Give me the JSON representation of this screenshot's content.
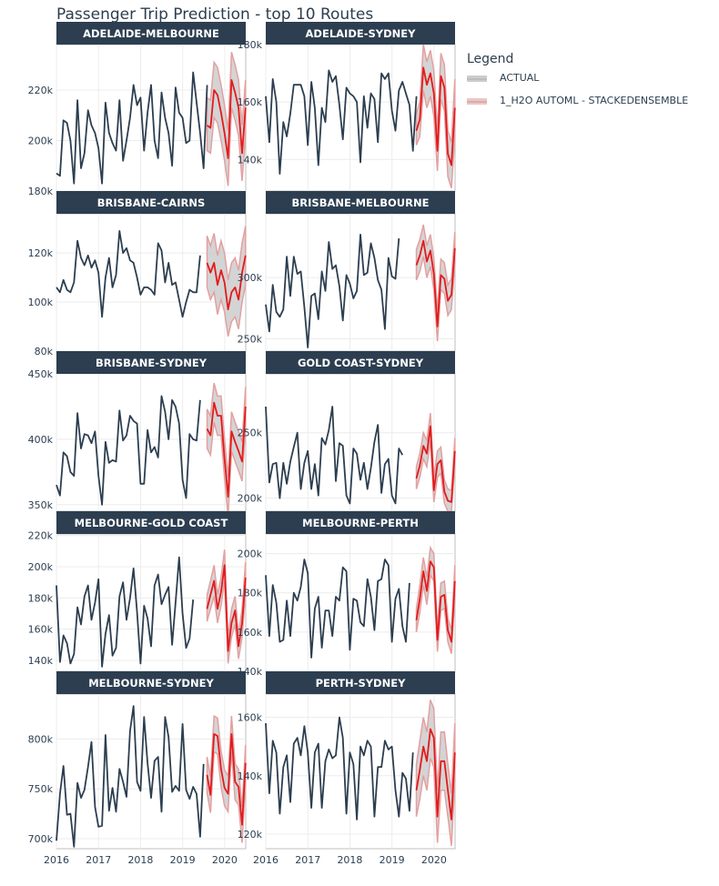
{
  "chart_title": "Passenger Trip Prediction - top 10 Routes",
  "legend": {
    "title": "Legend",
    "items": [
      {
        "label": "ACTUAL",
        "color": "#2c3e50"
      },
      {
        "label": "1_H2O AUTOML - STACKEDENSEMBLE",
        "color": "#e31a1c"
      }
    ]
  },
  "colors": {
    "actual": "#2c3e50",
    "forecast": "#e31a1c",
    "band": "#cccccc",
    "band_edge": "#e3a0a0",
    "strip": "#2c3e50"
  },
  "chart_data": {
    "type": "line",
    "title": "Passenger Trip Prediction - top 10 Routes",
    "x_axis": {
      "range": [
        2016,
        2020.5
      ],
      "ticks": [
        2016,
        2017,
        2018,
        2019,
        2020
      ],
      "labels": [
        "2016",
        "2017",
        "2018",
        "2019",
        "2020"
      ]
    },
    "series_names": [
      "ACTUAL",
      "1_H2O AUTOML - STACKEDENSEMBLE"
    ],
    "actual_start": 2016.0,
    "forecast_start": 2019.58,
    "step": 0.0833,
    "panels": [
      {
        "name": "ADELAIDE-MELBOURNE",
        "y_ticks": [
          180000,
          200000,
          220000
        ],
        "y_tick_labels": [
          "180k",
          "200k",
          "220k"
        ],
        "ylim": [
          180000,
          238000
        ],
        "actual": [
          187000,
          186000,
          208000,
          207000,
          200000,
          183000,
          216000,
          189000,
          195000,
          212000,
          206000,
          203000,
          197000,
          183000,
          215000,
          203000,
          199000,
          196000,
          216000,
          192000,
          200000,
          209000,
          222000,
          214000,
          217000,
          196000,
          211000,
          222000,
          200000,
          193000,
          219000,
          209000,
          203000,
          190000,
          221000,
          211000,
          209000,
          199000,
          200000,
          227000,
          215000,
          203000,
          189000,
          222000
        ],
        "forecast": [
          206000,
          205000,
          220000,
          218000,
          211000,
          203000,
          193000,
          224000,
          219000,
          213000,
          195000,
          213000
        ],
        "lower": [
          196000,
          195000,
          209000,
          207000,
          200000,
          192000,
          182000,
          213000,
          208000,
          202000,
          184000,
          202000
        ],
        "upper": [
          217000,
          216000,
          231000,
          229000,
          222000,
          214000,
          204000,
          235000,
          230000,
          224000,
          206000,
          224000
        ]
      },
      {
        "name": "ADELAIDE-SYDNEY",
        "y_ticks": [
          140000,
          160000,
          180000
        ],
        "y_tick_labels": [
          "140k",
          "160k",
          "180k"
        ],
        "ylim": [
          129000,
          180000
        ],
        "actual": [
          162000,
          146000,
          168000,
          160000,
          135000,
          153000,
          148000,
          156000,
          166000,
          166000,
          166000,
          162000,
          145000,
          167000,
          158000,
          138000,
          158000,
          153000,
          171000,
          167000,
          169000,
          159000,
          147000,
          165000,
          163000,
          162000,
          160000,
          139000,
          162000,
          151000,
          163000,
          161000,
          146000,
          170000,
          168000,
          170000,
          157000,
          150000,
          164000,
          167000,
          163000,
          159000,
          143000,
          162000
        ],
        "forecast": [
          150000,
          154000,
          172000,
          166000,
          170000,
          163000,
          143000,
          169000,
          165000,
          142000,
          138000,
          158000
        ],
        "lower": [
          145000,
          148000,
          164000,
          158000,
          162000,
          155000,
          136000,
          161000,
          157000,
          134000,
          130000,
          148000
        ],
        "upper": [
          156000,
          160000,
          180000,
          174000,
          178000,
          171000,
          150000,
          177000,
          173000,
          150000,
          146000,
          168000
        ]
      },
      {
        "name": "BRISBANE-CAIRNS",
        "y_ticks": [
          80000,
          100000,
          120000
        ],
        "y_tick_labels": [
          "80k",
          "100k",
          "120k"
        ],
        "ylim": [
          80000,
          136000
        ],
        "actual": [
          106000,
          104000,
          109000,
          105000,
          104000,
          108000,
          125000,
          118000,
          115000,
          119000,
          114000,
          117000,
          112000,
          94000,
          110000,
          118000,
          106000,
          111000,
          129000,
          120000,
          122000,
          117000,
          116000,
          110000,
          103000,
          106000,
          106000,
          105000,
          103000,
          124000,
          121000,
          108000,
          116000,
          107000,
          108000,
          101000,
          94000,
          100000,
          105000,
          104000,
          104000,
          119000
        ],
        "forecast": [
          116000,
          112000,
          116000,
          107000,
          113000,
          108000,
          97000,
          104000,
          106000,
          101000,
          112000,
          119000
        ],
        "lower": [
          106000,
          101000,
          104000,
          95000,
          101000,
          96000,
          86000,
          92000,
          94000,
          89000,
          100000,
          107000
        ],
        "upper": [
          127000,
          123000,
          128000,
          119000,
          125000,
          120000,
          109000,
          116000,
          118000,
          113000,
          124000,
          131000
        ]
      },
      {
        "name": "BRISBANE-MELBOURNE",
        "y_ticks": [
          250000,
          300000
        ],
        "y_tick_labels": [
          "250k",
          "300k"
        ],
        "ylim": [
          240000,
          352000
        ],
        "actual": [
          278000,
          256000,
          294000,
          272000,
          268000,
          274000,
          317000,
          285000,
          317000,
          303000,
          305000,
          276000,
          243000,
          285000,
          287000,
          266000,
          305000,
          289000,
          329000,
          307000,
          310000,
          293000,
          265000,
          302000,
          295000,
          283000,
          289000,
          335000,
          302000,
          304000,
          328000,
          316000,
          298000,
          290000,
          258000,
          316000,
          301000,
          299000,
          332000
        ],
        "forecast": [
          310000,
          318000,
          330000,
          313000,
          322000,
          303000,
          260000,
          302000,
          299000,
          281000,
          286000,
          324000
        ],
        "lower": [
          298000,
          305000,
          317000,
          300000,
          309000,
          290000,
          248000,
          290000,
          287000,
          269000,
          274000,
          311000
        ],
        "upper": [
          323000,
          331000,
          343000,
          326000,
          335000,
          316000,
          273000,
          315000,
          312000,
          294000,
          299000,
          337000
        ]
      },
      {
        "name": "BRISBANE-SYDNEY",
        "y_ticks": [
          350000,
          400000,
          450000
        ],
        "y_tick_labels": [
          "350k",
          "400k",
          "450k"
        ],
        "ylim": [
          345000,
          450000
        ],
        "actual": [
          365000,
          357000,
          390000,
          387000,
          375000,
          372000,
          420000,
          393000,
          404000,
          403000,
          397000,
          406000,
          372000,
          350000,
          398000,
          382000,
          384000,
          383000,
          422000,
          399000,
          403000,
          418000,
          414000,
          412000,
          366000,
          366000,
          407000,
          390000,
          394000,
          386000,
          433000,
          421000,
          400000,
          430000,
          425000,
          412000,
          369000,
          355000,
          404000,
          400000,
          399000,
          430000
        ],
        "forecast": [
          408000,
          403000,
          428000,
          418000,
          418000,
          385000,
          356000,
          406000,
          398000,
          391000,
          383000,
          425000
        ],
        "lower": [
          393000,
          388000,
          413000,
          403000,
          403000,
          370000,
          341000,
          391000,
          383000,
          376000,
          368000,
          410000
        ],
        "upper": [
          423000,
          418000,
          443000,
          433000,
          433000,
          400000,
          371000,
          421000,
          413000,
          406000,
          398000,
          440000
        ]
      },
      {
        "name": "GOLD COAST-SYDNEY",
        "y_ticks": [
          200000,
          250000
        ],
        "y_tick_labels": [
          "200k",
          "250k"
        ],
        "ylim": [
          190000,
          295000
        ],
        "actual": [
          270000,
          212000,
          226000,
          227000,
          200000,
          227000,
          211000,
          228000,
          239000,
          250000,
          207000,
          227000,
          236000,
          207000,
          226000,
          202000,
          246000,
          241000,
          252000,
          270000,
          213000,
          242000,
          240000,
          202000,
          196000,
          238000,
          234000,
          214000,
          227000,
          207000,
          223000,
          243000,
          256000,
          204000,
          226000,
          230000,
          202000,
          196000,
          238000,
          233000
        ],
        "forecast": [
          215000,
          225000,
          240000,
          234000,
          255000,
          206000,
          226000,
          229000,
          205000,
          198000,
          197000,
          236000
        ],
        "lower": [
          207000,
          216000,
          230000,
          224000,
          244000,
          197000,
          216000,
          219000,
          196000,
          190000,
          190000,
          226000
        ],
        "upper": [
          224000,
          234000,
          250000,
          244000,
          265000,
          216000,
          236000,
          239000,
          214000,
          207000,
          206000,
          246000
        ]
      },
      {
        "name": "MELBOURNE-GOLD COAST",
        "y_ticks": [
          140000,
          160000,
          180000,
          200000,
          220000
        ],
        "y_tick_labels": [
          "140k",
          "160k",
          "180k",
          "200k",
          "220k"
        ],
        "ylim": [
          133000,
          221000
        ],
        "actual": [
          188000,
          139000,
          156000,
          151000,
          138000,
          144000,
          174000,
          163000,
          181000,
          188000,
          166000,
          177000,
          192000,
          136000,
          157000,
          169000,
          143000,
          148000,
          181000,
          190000,
          166000,
          180000,
          199000,
          171000,
          138000,
          175000,
          167000,
          149000,
          188000,
          195000,
          176000,
          182000,
          187000,
          150000,
          177000,
          206000,
          170000,
          148000,
          154000,
          179000
        ],
        "forecast": [
          173000,
          182000,
          191000,
          173000,
          184000,
          201000,
          146000,
          164000,
          172000,
          149000,
          164000,
          193000
        ],
        "lower": [
          165000,
          173000,
          181000,
          164000,
          175000,
          191000,
          138000,
          155000,
          163000,
          141000,
          155000,
          183000
        ],
        "upper": [
          182000,
          191000,
          201000,
          182000,
          193000,
          211000,
          154000,
          173000,
          181000,
          157000,
          173000,
          203000
        ]
      },
      {
        "name": "MELBOURNE-PERTH",
        "y_ticks": [
          140000,
          160000,
          180000,
          200000
        ],
        "y_tick_labels": [
          "140k",
          "160k",
          "180k",
          "200k"
        ],
        "ylim": [
          140000,
          210000
        ],
        "actual": [
          189000,
          158000,
          184000,
          175000,
          155000,
          156000,
          176000,
          158000,
          180000,
          176000,
          183000,
          197000,
          190000,
          147000,
          172000,
          178000,
          152000,
          171000,
          171000,
          158000,
          178000,
          176000,
          193000,
          191000,
          151000,
          177000,
          176000,
          165000,
          163000,
          187000,
          178000,
          161000,
          186000,
          187000,
          197000,
          194000,
          155000,
          177000,
          182000,
          163000,
          155000,
          185000
        ],
        "forecast": [
          166000,
          177000,
          191000,
          181000,
          196000,
          193000,
          156000,
          178000,
          179000,
          161000,
          155000,
          186000
        ],
        "lower": [
          160000,
          170000,
          184000,
          174000,
          189000,
          186000,
          150000,
          171000,
          172000,
          155000,
          149000,
          178000
        ],
        "upper": [
          172000,
          184000,
          198000,
          188000,
          203000,
          200000,
          162000,
          185000,
          186000,
          167000,
          161000,
          194000
        ]
      },
      {
        "name": "MELBOURNE-SYDNEY",
        "y_ticks": [
          700000,
          750000,
          800000
        ],
        "y_tick_labels": [
          "700k",
          "750k",
          "800k"
        ],
        "ylim": [
          690000,
          845000
        ],
        "actual": [
          698000,
          745000,
          773000,
          724000,
          725000,
          692000,
          756000,
          741000,
          749000,
          772000,
          797000,
          732000,
          712000,
          713000,
          804000,
          728000,
          751000,
          727000,
          770000,
          757000,
          742000,
          808000,
          833000,
          757000,
          748000,
          822000,
          776000,
          741000,
          778000,
          782000,
          727000,
          822000,
          802000,
          747000,
          753000,
          748000,
          815000,
          749000,
          740000,
          752000,
          745000,
          702000,
          775000
        ],
        "forecast": [
          764000,
          744000,
          805000,
          803000,
          770000,
          751000,
          745000,
          805000,
          757000,
          752000,
          714000,
          776000
        ],
        "lower": [
          746000,
          726000,
          787000,
          785000,
          752000,
          733000,
          727000,
          787000,
          739000,
          734000,
          696000,
          758000
        ],
        "upper": [
          782000,
          762000,
          823000,
          821000,
          788000,
          769000,
          763000,
          823000,
          775000,
          770000,
          732000,
          794000
        ]
      },
      {
        "name": "PERTH-SYDNEY",
        "y_ticks": [
          120000,
          140000,
          160000
        ],
        "y_tick_labels": [
          "120k",
          "140k",
          "160k"
        ],
        "ylim": [
          115000,
          168000
        ],
        "actual": [
          158000,
          134000,
          152000,
          148000,
          127000,
          143000,
          147000,
          131000,
          151000,
          153000,
          147000,
          157000,
          148000,
          129000,
          148000,
          151000,
          129000,
          145000,
          149000,
          146000,
          147000,
          160000,
          153000,
          127000,
          148000,
          144000,
          125000,
          150000,
          147000,
          152000,
          150000,
          126000,
          143000,
          143000,
          152000,
          149000,
          150000,
          135000,
          126000,
          141000,
          139000,
          128000,
          148000
        ],
        "forecast": [
          135000,
          142000,
          150000,
          145000,
          156000,
          153000,
          126000,
          145000,
          145000,
          135000,
          125000,
          148000
        ],
        "lower": [
          126000,
          132000,
          140000,
          135000,
          146000,
          143000,
          117000,
          135000,
          135000,
          126000,
          116000,
          138000
        ],
        "upper": [
          144000,
          152000,
          160000,
          155000,
          166000,
          163000,
          135000,
          155000,
          155000,
          144000,
          134000,
          158000
        ]
      }
    ]
  }
}
